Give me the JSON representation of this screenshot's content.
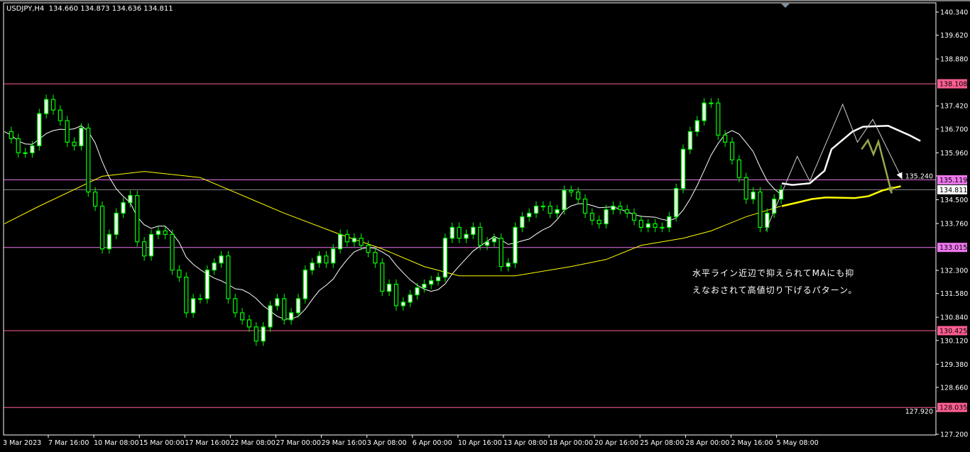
{
  "header": {
    "symbol": "USDJPY,H4",
    "ohlc": "134.660 134.873 134.636 134.811"
  },
  "annotation": {
    "line1": "水平ライン近辺で抑えられてMAにも抑",
    "line2": "えなおされて高値切り下げるパターン。"
  },
  "colors": {
    "background": "#000000",
    "candle": "#00ff00",
    "ma_short": "#ffffff",
    "ma_long": "#ffff00",
    "level_pink": "#ff5f92",
    "level_violet": "#ee77ee",
    "current_price": "#8a8a8a",
    "projection_olive": "#9aa84a"
  },
  "chart_data": {
    "type": "candlestick",
    "symbol": "USDJPY",
    "timeframe": "H4",
    "ylim": [
      127.2,
      140.34
    ],
    "y_ticks": [
      "140.340",
      "139.620",
      "138.880",
      "137.420",
      "136.700",
      "135.960",
      "135.240",
      "134.500",
      "133.760",
      "132.300",
      "131.580",
      "130.840",
      "130.120",
      "129.380",
      "128.660",
      "127.920",
      "127.200"
    ],
    "x_ticks": [
      "3 Mar 2023",
      "7 Mar 16:00",
      "10 Mar 08:00",
      "15 Mar 00:00",
      "17 Mar 16:00",
      "22 Mar 08:00",
      "27 Mar 00:00",
      "29 Mar 16:00",
      "3 Apr 08:00",
      "6 Apr 00:00",
      "10 Apr 16:00",
      "13 Apr 08:00",
      "18 Apr 00:00",
      "20 Apr 16:00",
      "25 Apr 08:00",
      "28 Apr 00:00",
      "2 May 16:00",
      "5 May 08:00"
    ],
    "closes": [
      136.62,
      136.4,
      135.96,
      135.96,
      136.18,
      137.18,
      137.62,
      137.29,
      136.96,
      136.29,
      136.18,
      136.73,
      134.74,
      134.3,
      132.97,
      133.42,
      134.08,
      134.41,
      134.63,
      133.19,
      132.75,
      133.42,
      133.53,
      133.42,
      132.31,
      132.09,
      130.98,
      131.42,
      131.42,
      132.31,
      132.53,
      132.75,
      131.42,
      130.98,
      130.76,
      130.54,
      130.1,
      130.54,
      131.2,
      131.42,
      130.76,
      130.98,
      131.42,
      132.31,
      132.53,
      132.75,
      132.53,
      132.97,
      133.42,
      133.19,
      133.3,
      133.08,
      132.86,
      132.53,
      131.65,
      131.87,
      131.2,
      131.31,
      131.54,
      131.76,
      131.87,
      131.98,
      132.09,
      133.3,
      133.64,
      133.3,
      133.42,
      133.64,
      133.08,
      133.19,
      133.3,
      132.42,
      132.53,
      133.64,
      133.97,
      134.08,
      134.3,
      134.3,
      134.08,
      134.19,
      134.79,
      134.74,
      134.52,
      134.08,
      133.86,
      133.75,
      134.19,
      134.3,
      134.19,
      134.08,
      133.86,
      133.64,
      133.75,
      133.64,
      133.64,
      133.97,
      134.85,
      136.07,
      136.62,
      136.96,
      137.51,
      137.51,
      136.51,
      136.29,
      135.74,
      135.19,
      134.52,
      134.74,
      133.64,
      134.08,
      134.52,
      134.81
    ],
    "ma_short_period_bars": 8,
    "ma_long": [
      [
        0,
        133.75
      ],
      [
        5,
        134.3
      ],
      [
        14,
        135.23
      ],
      [
        20,
        135.38
      ],
      [
        28,
        135.19
      ],
      [
        40,
        134.08
      ],
      [
        48,
        133.42
      ],
      [
        54,
        132.97
      ],
      [
        60,
        132.42
      ],
      [
        65,
        132.13
      ],
      [
        73,
        132.13
      ],
      [
        81,
        132.42
      ],
      [
        86,
        132.64
      ],
      [
        91,
        133.08
      ],
      [
        97,
        133.3
      ],
      [
        101,
        133.53
      ],
      [
        106,
        133.97
      ],
      [
        111,
        134.3
      ]
    ],
    "levels": [
      {
        "price": 138.108,
        "label": "138.108",
        "style": "pink"
      },
      {
        "price": 135.119,
        "label": "135.119",
        "style": "violet"
      },
      {
        "price": 134.811,
        "label": "134.811",
        "style": "current"
      },
      {
        "price": 133.015,
        "label": "133.015",
        "style": "violet"
      },
      {
        "price": 130.425,
        "label": "130.425",
        "style": "pink"
      },
      {
        "price": 128.035,
        "label": "128.035",
        "style": "pink"
      }
    ],
    "drawings": {
      "zigzag_white": [
        [
          108.8,
          133.53
        ],
        [
          113.3,
          135.85
        ],
        [
          115.1,
          135.08
        ],
        [
          119.8,
          137.47
        ],
        [
          121.9,
          136.29
        ],
        [
          124.1,
          137.0
        ],
        [
          128.3,
          135.14
        ]
      ],
      "zigzag_olive": [
        [
          122.5,
          136.07
        ],
        [
          123.4,
          136.35
        ],
        [
          124.2,
          135.91
        ],
        [
          124.9,
          136.31
        ],
        [
          126.8,
          134.7
        ]
      ],
      "projected_ma_short": [
        [
          111.1,
          135.01
        ],
        [
          112.6,
          134.96
        ],
        [
          115.1,
          135.01
        ],
        [
          117.2,
          135.4
        ],
        [
          118.2,
          136.07
        ],
        [
          121.2,
          136.62
        ],
        [
          122.7,
          136.77
        ],
        [
          126.3,
          136.8
        ],
        [
          129.3,
          136.51
        ],
        [
          130.9,
          136.33
        ]
      ],
      "projected_ma_long": [
        [
          111.1,
          134.3
        ],
        [
          113.3,
          134.41
        ],
        [
          115.4,
          134.52
        ],
        [
          117.4,
          134.57
        ],
        [
          121.5,
          134.55
        ],
        [
          123.5,
          134.61
        ],
        [
          125.5,
          134.79
        ],
        [
          128.1,
          134.92
        ]
      ]
    }
  }
}
